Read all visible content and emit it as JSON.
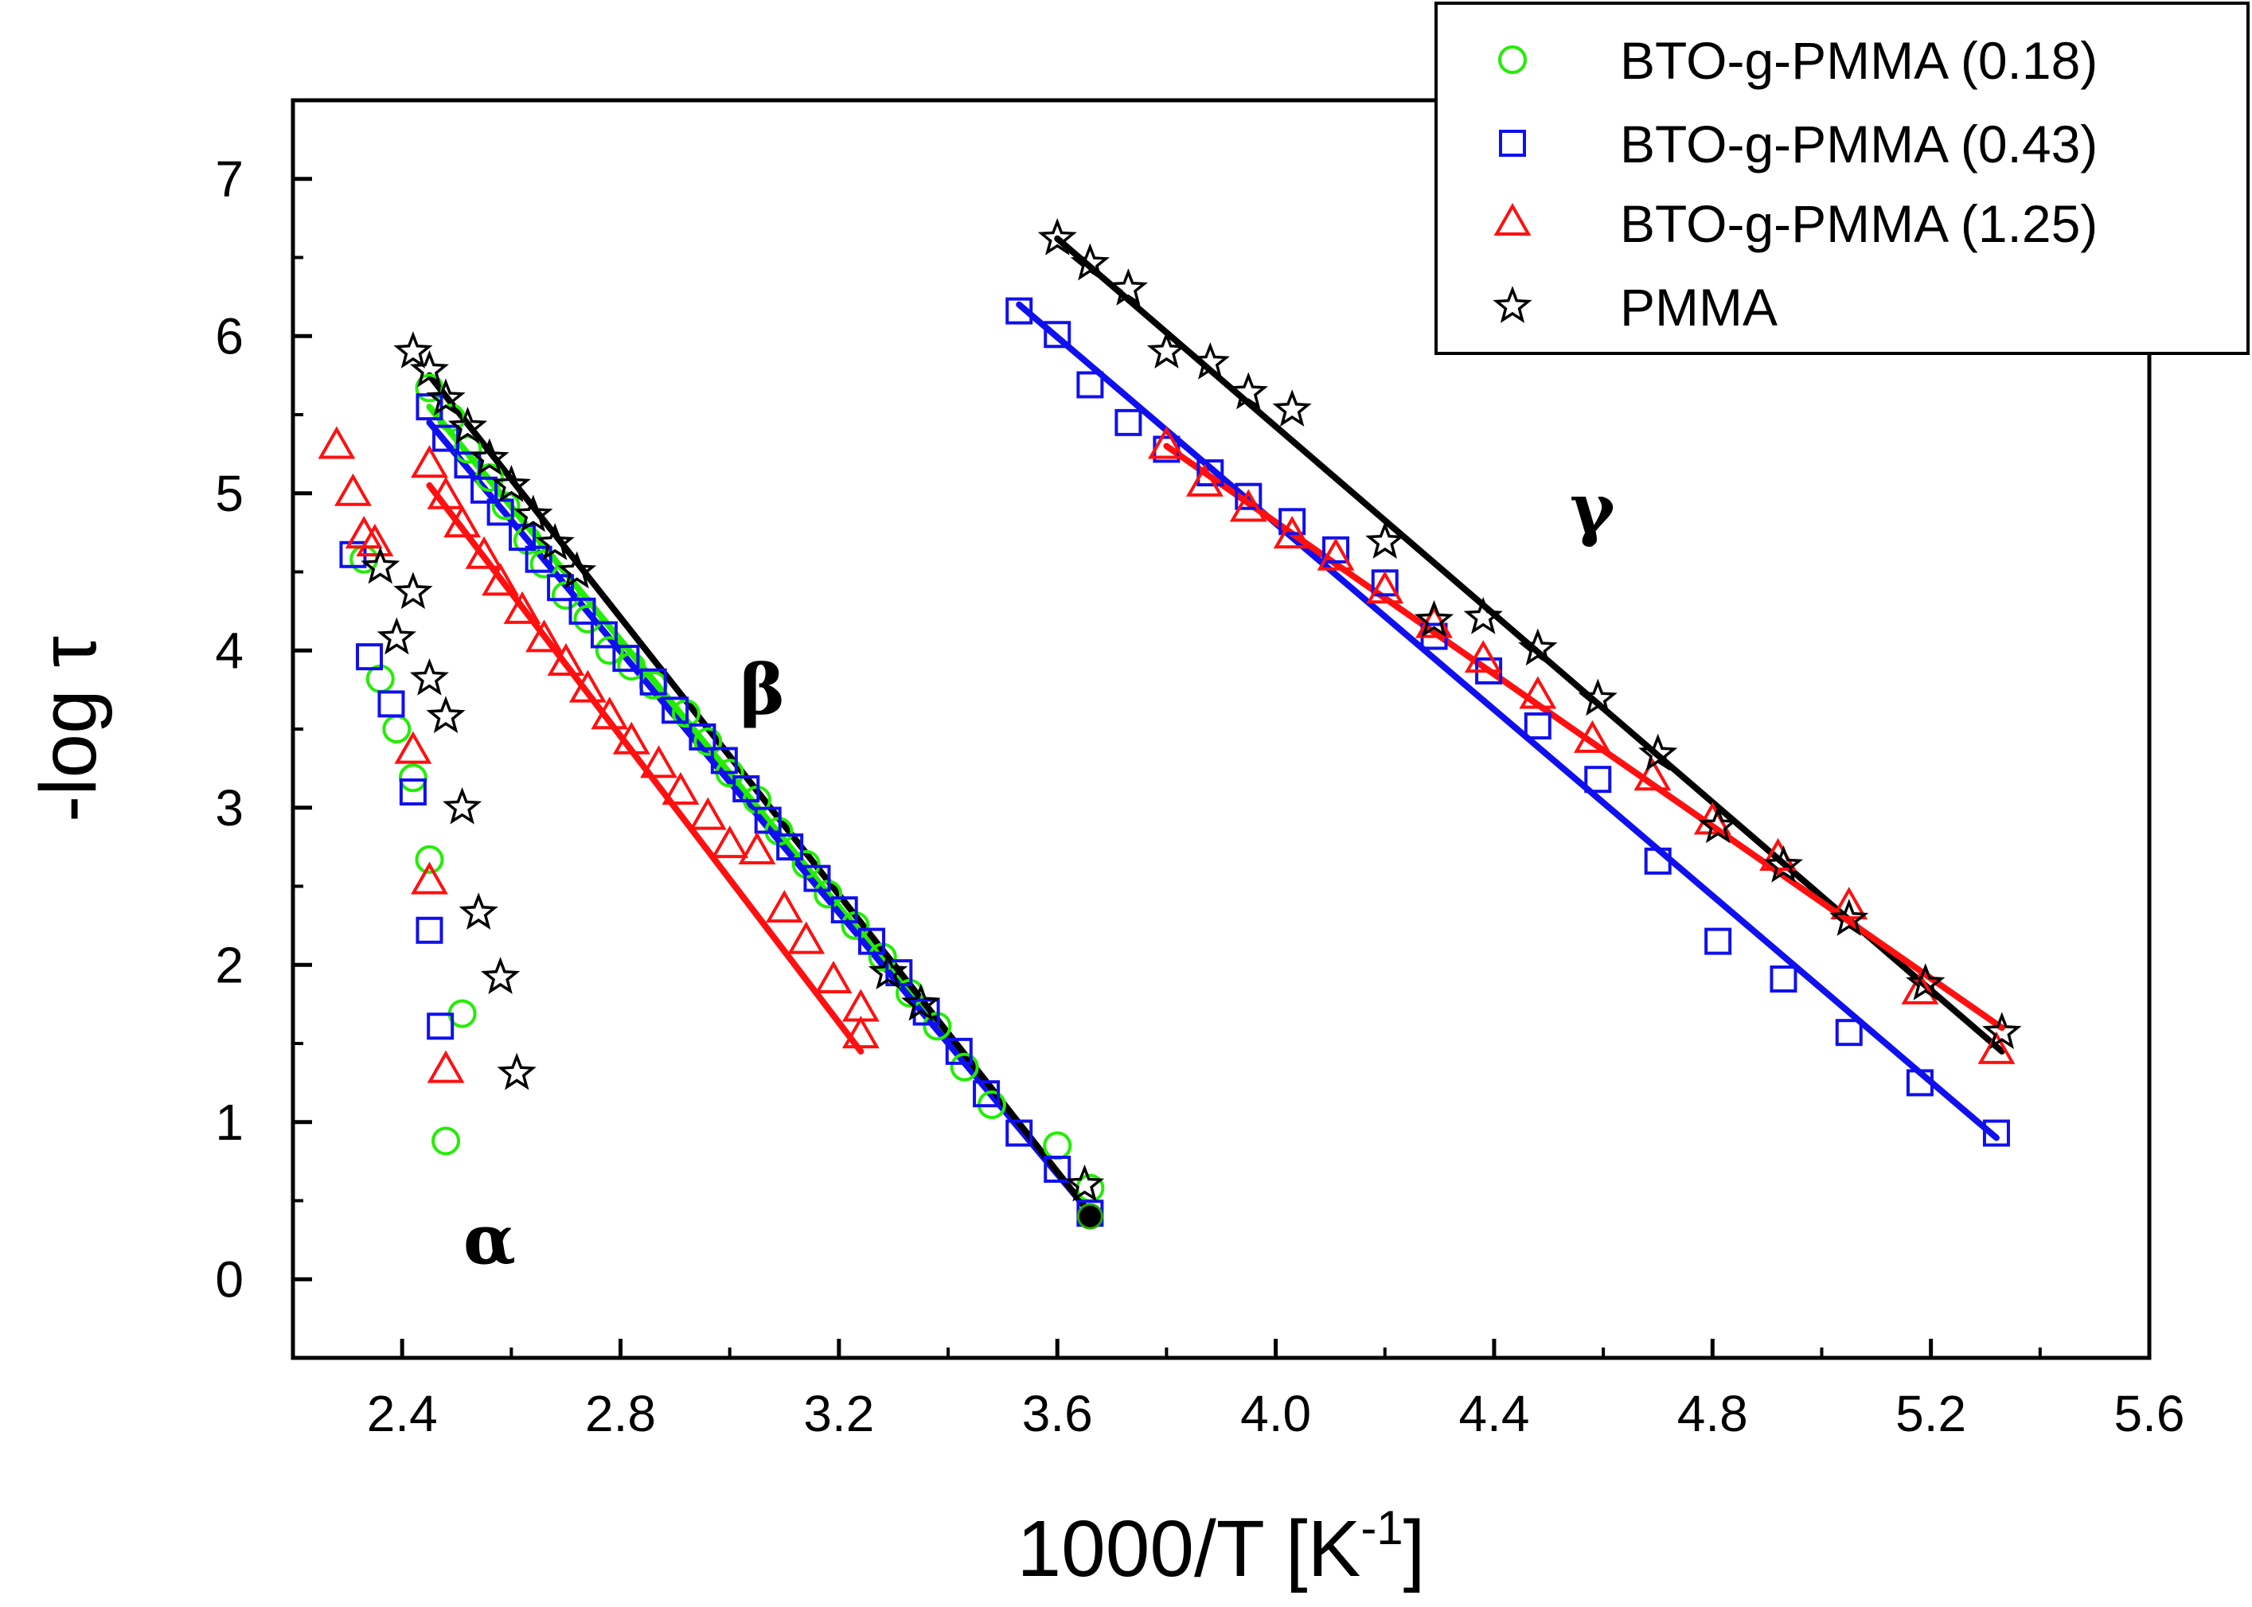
{
  "chart_data": {
    "type": "scatter",
    "xlabel": "1000/T [K",
    "xlabel_sup": "-1",
    "xlabel_end": "]",
    "ylabel": "-log τ",
    "xlim": [
      2.2,
      5.6
    ],
    "ylim": [
      -0.5,
      7.5
    ],
    "xticks": [
      2.4,
      2.8,
      3.2,
      3.6,
      4.0,
      4.4,
      4.8,
      5.2,
      5.6
    ],
    "xtick_labels": [
      "2.4",
      "2.8",
      "3.2",
      "3.6",
      "4.0",
      "4.4",
      "4.8",
      "5.2",
      "5.6"
    ],
    "yticks": [
      0,
      1,
      2,
      3,
      4,
      5,
      6,
      7
    ],
    "ytick_labels": [
      "0",
      "1",
      "2",
      "3",
      "4",
      "5",
      "6",
      "7"
    ],
    "legend_position": "top-right",
    "annotations": [
      {
        "text": "α",
        "x": 2.56,
        "y": 0.1
      },
      {
        "text": "β",
        "x": 3.06,
        "y": 3.6
      },
      {
        "text": "γ",
        "x": 4.58,
        "y": 4.75
      }
    ],
    "series": [
      {
        "name": "BTO-g-PMMA (0.18)",
        "marker": "circle",
        "color": "#22ee00",
        "points": [
          [
            2.33,
            4.58
          ],
          [
            2.36,
            3.82
          ],
          [
            2.39,
            3.5
          ],
          [
            2.42,
            3.19
          ],
          [
            2.45,
            2.67
          ],
          [
            2.51,
            1.69
          ],
          [
            2.48,
            0.88
          ],
          [
            2.45,
            5.67
          ],
          [
            2.49,
            5.48
          ],
          [
            2.52,
            5.28
          ],
          [
            2.56,
            5.1
          ],
          [
            2.59,
            4.92
          ],
          [
            2.63,
            4.7
          ],
          [
            2.66,
            4.55
          ],
          [
            2.7,
            4.35
          ],
          [
            2.74,
            4.2
          ],
          [
            2.78,
            4.0
          ],
          [
            2.82,
            3.9
          ],
          [
            2.86,
            3.78
          ],
          [
            2.92,
            3.6
          ],
          [
            2.96,
            3.42
          ],
          [
            3.0,
            3.22
          ],
          [
            3.05,
            3.05
          ],
          [
            3.09,
            2.85
          ],
          [
            3.14,
            2.64
          ],
          [
            3.18,
            2.45
          ],
          [
            3.23,
            2.25
          ],
          [
            3.28,
            2.05
          ],
          [
            3.33,
            1.82
          ],
          [
            3.38,
            1.61
          ],
          [
            3.43,
            1.35
          ],
          [
            3.48,
            1.11
          ],
          [
            3.6,
            0.85
          ],
          [
            3.66,
            0.58
          ]
        ]
      },
      {
        "name": "BTO-g-PMMA (0.43)",
        "marker": "square",
        "color": "#1010ee",
        "points": [
          [
            2.31,
            4.61
          ],
          [
            2.34,
            3.96
          ],
          [
            2.38,
            3.66
          ],
          [
            2.42,
            3.1
          ],
          [
            2.45,
            2.22
          ],
          [
            2.47,
            1.61
          ],
          [
            2.45,
            5.55
          ],
          [
            2.48,
            5.35
          ],
          [
            2.52,
            5.18
          ],
          [
            2.55,
            5.02
          ],
          [
            2.58,
            4.88
          ],
          [
            2.62,
            4.72
          ],
          [
            2.65,
            4.58
          ],
          [
            2.69,
            4.4
          ],
          [
            2.73,
            4.25
          ],
          [
            2.77,
            4.1
          ],
          [
            2.81,
            3.95
          ],
          [
            2.86,
            3.8
          ],
          [
            2.9,
            3.62
          ],
          [
            2.95,
            3.45
          ],
          [
            2.99,
            3.3
          ],
          [
            3.03,
            3.12
          ],
          [
            3.07,
            2.92
          ],
          [
            3.11,
            2.75
          ],
          [
            3.16,
            2.55
          ],
          [
            3.21,
            2.35
          ],
          [
            3.26,
            2.15
          ],
          [
            3.31,
            1.95
          ],
          [
            3.36,
            1.7
          ],
          [
            3.42,
            1.45
          ],
          [
            3.47,
            1.18
          ],
          [
            3.53,
            0.93
          ],
          [
            3.6,
            0.7
          ],
          [
            3.66,
            0.42
          ],
          [
            3.53,
            6.16
          ],
          [
            3.6,
            6.01
          ],
          [
            3.66,
            5.69
          ],
          [
            3.73,
            5.45
          ],
          [
            3.8,
            5.28
          ],
          [
            3.88,
            5.13
          ],
          [
            3.95,
            4.98
          ],
          [
            4.03,
            4.82
          ],
          [
            4.11,
            4.64
          ],
          [
            4.2,
            4.43
          ],
          [
            4.29,
            4.09
          ],
          [
            4.39,
            3.87
          ],
          [
            4.48,
            3.52
          ],
          [
            4.59,
            3.18
          ],
          [
            4.7,
            2.66
          ],
          [
            4.81,
            2.15
          ],
          [
            4.93,
            1.91
          ],
          [
            5.05,
            1.57
          ],
          [
            5.18,
            1.25
          ],
          [
            5.32,
            0.93
          ]
        ]
      },
      {
        "name": "BTO-g-PMMA (1.25)",
        "marker": "triangle",
        "color": "#ff1010",
        "points": [
          [
            2.28,
            5.3
          ],
          [
            2.31,
            5.0
          ],
          [
            2.33,
            4.73
          ],
          [
            2.35,
            4.68
          ],
          [
            2.42,
            3.36
          ],
          [
            2.45,
            2.53
          ],
          [
            2.48,
            1.33
          ],
          [
            2.45,
            5.18
          ],
          [
            2.48,
            4.98
          ],
          [
            2.51,
            4.8
          ],
          [
            2.55,
            4.6
          ],
          [
            2.58,
            4.43
          ],
          [
            2.62,
            4.25
          ],
          [
            2.66,
            4.07
          ],
          [
            2.7,
            3.92
          ],
          [
            2.74,
            3.75
          ],
          [
            2.78,
            3.58
          ],
          [
            2.82,
            3.42
          ],
          [
            2.87,
            3.27
          ],
          [
            2.91,
            3.1
          ],
          [
            2.96,
            2.94
          ],
          [
            3.0,
            2.76
          ],
          [
            3.05,
            2.72
          ],
          [
            3.1,
            2.35
          ],
          [
            3.14,
            2.15
          ],
          [
            3.19,
            1.9
          ],
          [
            3.24,
            1.72
          ],
          [
            3.24,
            1.55
          ],
          [
            3.8,
            5.3
          ],
          [
            3.87,
            5.06
          ],
          [
            3.95,
            4.9
          ],
          [
            4.03,
            4.73
          ],
          [
            4.11,
            4.59
          ],
          [
            4.2,
            4.38
          ],
          [
            4.29,
            4.16
          ],
          [
            4.38,
            3.94
          ],
          [
            4.48,
            3.71
          ],
          [
            4.58,
            3.43
          ],
          [
            4.69,
            3.19
          ],
          [
            4.8,
            2.91
          ],
          [
            4.92,
            2.68
          ],
          [
            5.05,
            2.37
          ],
          [
            5.18,
            1.83
          ],
          [
            5.32,
            1.45
          ]
        ]
      },
      {
        "name": "PMMA",
        "marker": "star",
        "color": "#000000",
        "points": [
          [
            2.36,
            4.53
          ],
          [
            2.39,
            4.08
          ],
          [
            2.42,
            4.37
          ],
          [
            2.45,
            3.82
          ],
          [
            2.48,
            3.58
          ],
          [
            2.51,
            3.0
          ],
          [
            2.54,
            2.33
          ],
          [
            2.58,
            1.92
          ],
          [
            2.61,
            1.31
          ],
          [
            2.42,
            5.9
          ],
          [
            2.45,
            5.78
          ],
          [
            2.48,
            5.6
          ],
          [
            2.52,
            5.42
          ],
          [
            2.56,
            5.22
          ],
          [
            2.6,
            5.05
          ],
          [
            2.64,
            4.86
          ],
          [
            2.68,
            4.68
          ],
          [
            2.72,
            4.5
          ],
          [
            3.29,
            1.95
          ],
          [
            3.35,
            1.75
          ],
          [
            3.65,
            0.6
          ],
          [
            3.6,
            6.62
          ],
          [
            3.66,
            6.46
          ],
          [
            3.73,
            6.3
          ],
          [
            3.8,
            5.9
          ],
          [
            3.88,
            5.83
          ],
          [
            3.95,
            5.64
          ],
          [
            4.03,
            5.53
          ],
          [
            4.2,
            4.69
          ],
          [
            4.29,
            4.19
          ],
          [
            4.38,
            4.21
          ],
          [
            4.48,
            4.01
          ],
          [
            4.59,
            3.69
          ],
          [
            4.7,
            3.34
          ],
          [
            4.81,
            2.88
          ],
          [
            4.93,
            2.63
          ],
          [
            5.05,
            2.29
          ],
          [
            5.19,
            1.88
          ],
          [
            5.33,
            1.57
          ]
        ]
      }
    ],
    "fit_lines": [
      {
        "name": "BTO-g-PMMA (0.18) β fit",
        "color": "#22ee00",
        "x": [
          2.45,
          3.66
        ],
        "y": [
          5.55,
          0.42
        ]
      },
      {
        "name": "BTO-g-PMMA (0.43) β fit",
        "color": "#1010ee",
        "x": [
          2.45,
          3.66
        ],
        "y": [
          5.45,
          0.42
        ]
      },
      {
        "name": "PMMA β fit",
        "color": "#000000",
        "x": [
          2.45,
          3.66
        ],
        "y": [
          5.75,
          0.42
        ]
      },
      {
        "name": "BTO-g-PMMA (1.25) β fit",
        "color": "#ff1010",
        "x": [
          2.45,
          3.24
        ],
        "y": [
          5.05,
          1.45
        ]
      },
      {
        "name": "BTO-g-PMMA (0.43) γ fit",
        "color": "#1010ee",
        "x": [
          3.53,
          5.32
        ],
        "y": [
          6.2,
          0.9
        ]
      },
      {
        "name": "PMMA γ fit",
        "color": "#000000",
        "x": [
          3.6,
          5.33
        ],
        "y": [
          6.62,
          1.45
        ]
      },
      {
        "name": "BTO-g-PMMA (1.25) γ fit",
        "color": "#ff1010",
        "x": [
          3.8,
          5.33
        ],
        "y": [
          5.3,
          1.6
        ]
      }
    ],
    "endpoint_marker": {
      "x": 3.66,
      "y": 0.4,
      "color": "#000000"
    }
  }
}
